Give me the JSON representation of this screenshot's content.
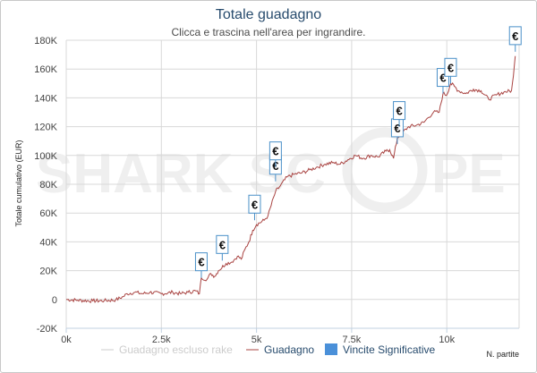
{
  "colors": {
    "line": "#a94442",
    "flag_border": "#4a90c8",
    "grid": "#d8d8d8",
    "axis": "#c0d0e0",
    "legend_muted": "#cccccc",
    "legend_text": "#274b6d",
    "legend_swatch": "#4a90d9",
    "watermark": "#efefef"
  },
  "watermark": {
    "left": "SHARK SC",
    "right": "PE"
  },
  "chart_data": {
    "type": "line",
    "title": "Totale guadagno",
    "subtitle": "Clicca e trascina nell'area per ingrandire.",
    "ylabel": "Totale cumulativo (EUR)",
    "xlabel": "N. partite",
    "xlim": [
      0,
      11900
    ],
    "ylim": [
      -20000,
      180000
    ],
    "grid": true,
    "legend_position": "bottom",
    "x_ticks": [
      {
        "value": 0,
        "label": "0k"
      },
      {
        "value": 2500,
        "label": "2.5k"
      },
      {
        "value": 5000,
        "label": "5k"
      },
      {
        "value": 7500,
        "label": "7.5k"
      },
      {
        "value": 10000,
        "label": "10k"
      }
    ],
    "y_ticks": [
      {
        "value": -20000,
        "label": "-20K"
      },
      {
        "value": 0,
        "label": "0"
      },
      {
        "value": 20000,
        "label": "20K"
      },
      {
        "value": 40000,
        "label": "40K"
      },
      {
        "value": 60000,
        "label": "60K"
      },
      {
        "value": 80000,
        "label": "80K"
      },
      {
        "value": 100000,
        "label": "100K"
      },
      {
        "value": 120000,
        "label": "120K"
      },
      {
        "value": 140000,
        "label": "140K"
      },
      {
        "value": 160000,
        "label": "160K"
      },
      {
        "value": 180000,
        "label": "180K"
      }
    ],
    "series": [
      {
        "name": "Guadagno",
        "color": "#a94442",
        "points": [
          [
            0,
            0
          ],
          [
            300,
            -500
          ],
          [
            700,
            -1000
          ],
          [
            1000,
            -800
          ],
          [
            1300,
            -300
          ],
          [
            1500,
            2000
          ],
          [
            1600,
            4000
          ],
          [
            1800,
            5000
          ],
          [
            2000,
            4000
          ],
          [
            2200,
            5000
          ],
          [
            2500,
            4000
          ],
          [
            2800,
            5000
          ],
          [
            3000,
            4000
          ],
          [
            3200,
            5000
          ],
          [
            3400,
            6000
          ],
          [
            3500,
            4000
          ],
          [
            3550,
            15000
          ],
          [
            3700,
            14000
          ],
          [
            3800,
            18000
          ],
          [
            3900,
            16000
          ],
          [
            4000,
            20000
          ],
          [
            4200,
            25000
          ],
          [
            4350,
            26000
          ],
          [
            4500,
            30000
          ],
          [
            4600,
            28000
          ],
          [
            4700,
            35000
          ],
          [
            4800,
            40000
          ],
          [
            4900,
            48000
          ],
          [
            5000,
            52000
          ],
          [
            5200,
            55000
          ],
          [
            5300,
            58000
          ],
          [
            5500,
            75000
          ],
          [
            5600,
            78000
          ],
          [
            5800,
            85000
          ],
          [
            6000,
            87000
          ],
          [
            6200,
            88000
          ],
          [
            6400,
            90000
          ],
          [
            6600,
            92000
          ],
          [
            6800,
            94000
          ],
          [
            7000,
            95000
          ],
          [
            7200,
            94000
          ],
          [
            7400,
            97000
          ],
          [
            7600,
            100000
          ],
          [
            7800,
            98000
          ],
          [
            8000,
            100000
          ],
          [
            8200,
            99000
          ],
          [
            8400,
            103000
          ],
          [
            8500,
            104000
          ],
          [
            8600,
            98000
          ],
          [
            8700,
            112000
          ],
          [
            8800,
            115000
          ],
          [
            9000,
            120000
          ],
          [
            9200,
            121000
          ],
          [
            9400,
            123000
          ],
          [
            9500,
            126000
          ],
          [
            9650,
            130000
          ],
          [
            9800,
            130000
          ],
          [
            9900,
            143000
          ],
          [
            10000,
            142000
          ],
          [
            10100,
            150000
          ],
          [
            10200,
            148000
          ],
          [
            10300,
            145000
          ],
          [
            10500,
            143000
          ],
          [
            10700,
            146000
          ],
          [
            10900,
            145000
          ],
          [
            11100,
            139000
          ],
          [
            11300,
            142000
          ],
          [
            11500,
            144000
          ],
          [
            11700,
            145000
          ],
          [
            11750,
            155000
          ],
          [
            11800,
            169000
          ]
        ]
      }
    ],
    "flags": [
      {
        "x": 3550,
        "y": 15000,
        "label": "€"
      },
      {
        "x": 4100,
        "y": 27000,
        "label": "€"
      },
      {
        "x": 4950,
        "y": 55000,
        "label": "€"
      },
      {
        "x": 5500,
        "y": 82000,
        "label": "€"
      },
      {
        "x": 5500,
        "y": 92000,
        "label": "€"
      },
      {
        "x": 8700,
        "y": 108000,
        "label": "€"
      },
      {
        "x": 8750,
        "y": 120000,
        "label": "€"
      },
      {
        "x": 9900,
        "y": 143000,
        "label": "€"
      },
      {
        "x": 10100,
        "y": 150000,
        "label": "€"
      },
      {
        "x": 11800,
        "y": 172000,
        "label": "€"
      }
    ],
    "legend": [
      {
        "label": "Guadagno escluso rake",
        "style": "line-muted"
      },
      {
        "label": "Guadagno",
        "style": "line"
      },
      {
        "label": "Vincite Significative",
        "style": "swatch"
      }
    ]
  }
}
